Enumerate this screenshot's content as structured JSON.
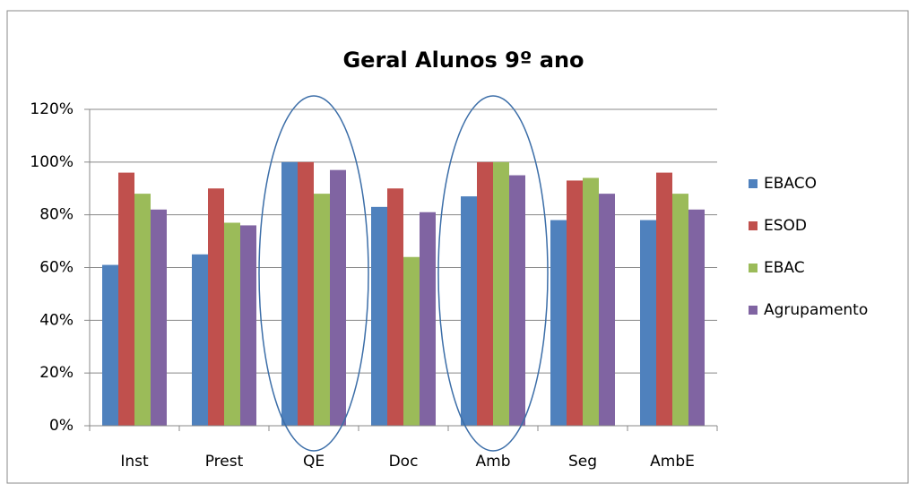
{
  "chart_data": {
    "type": "bar",
    "title": "Geral Alunos 9º ano",
    "categories": [
      "Inst",
      "Prest",
      "QE",
      "Doc",
      "Amb",
      "Seg",
      "AmbE"
    ],
    "series": [
      {
        "name": "EBACO",
        "color": "#4f81bd",
        "values": [
          61,
          65,
          100,
          83,
          87,
          78,
          78
        ]
      },
      {
        "name": "ESOD",
        "color": "#c0504d",
        "values": [
          96,
          90,
          100,
          90,
          100,
          93,
          96
        ]
      },
      {
        "name": "EBAC",
        "color": "#9bbb59",
        "values": [
          88,
          77,
          88,
          64,
          100,
          94,
          88
        ]
      },
      {
        "name": "Agrupamento",
        "color": "#8064a2",
        "values": [
          82,
          76,
          97,
          81,
          95,
          88,
          82
        ]
      }
    ],
    "ylim": [
      0,
      120
    ],
    "yticks": [
      {
        "value": 0,
        "label": "0%"
      },
      {
        "value": 20,
        "label": "20%"
      },
      {
        "value": 40,
        "label": "40%"
      },
      {
        "value": 60,
        "label": "60%"
      },
      {
        "value": 80,
        "label": "80%"
      },
      {
        "value": 100,
        "label": "100%"
      },
      {
        "value": 120,
        "label": "120%"
      }
    ],
    "grid": true,
    "legend": "right"
  }
}
